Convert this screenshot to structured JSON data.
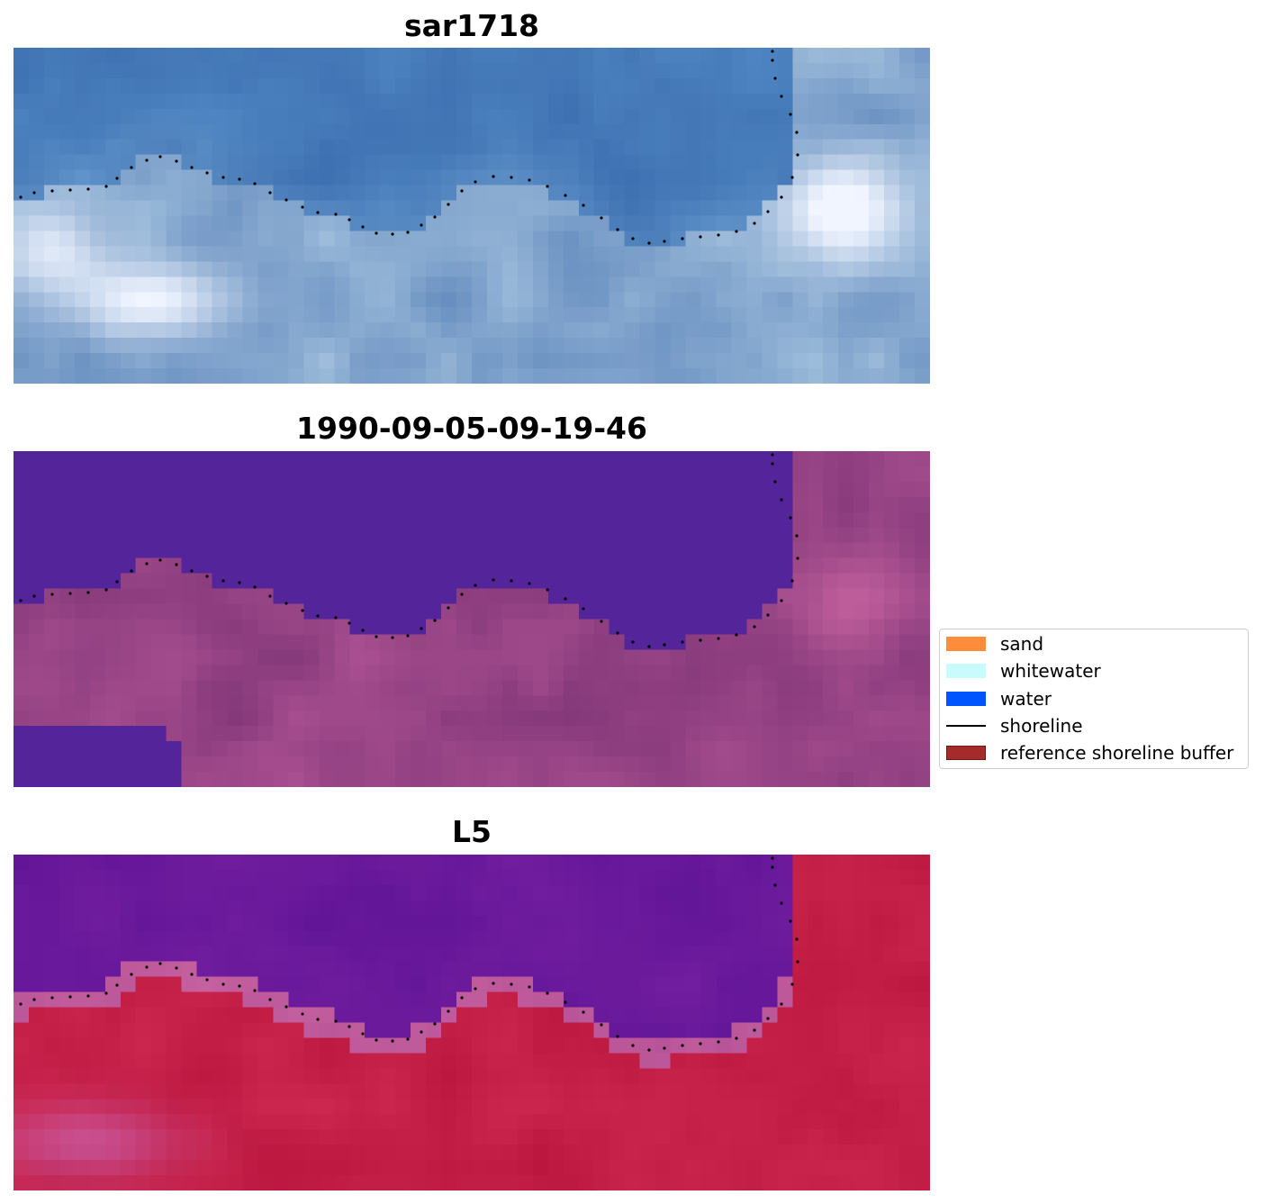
{
  "panels": [
    {
      "title": "sar1718",
      "kind": "sar"
    },
    {
      "title": "1990-09-05-09-19-46",
      "kind": "classified"
    },
    {
      "title": "L5",
      "kind": "index"
    }
  ],
  "legend": {
    "items": [
      {
        "label": "sand",
        "type": "patch",
        "color": "#ff8c3a"
      },
      {
        "label": "whitewater",
        "type": "patch",
        "color": "#c8fcfc"
      },
      {
        "label": "water",
        "type": "patch",
        "color": "#0055ff"
      },
      {
        "label": "shoreline",
        "type": "line",
        "color": "#000000"
      },
      {
        "label": "reference shoreline buffer",
        "type": "patch",
        "color": "#a52a2a"
      }
    ]
  },
  "colors": {
    "shoreline_dots": "#000000",
    "water_class": "#54249a"
  }
}
